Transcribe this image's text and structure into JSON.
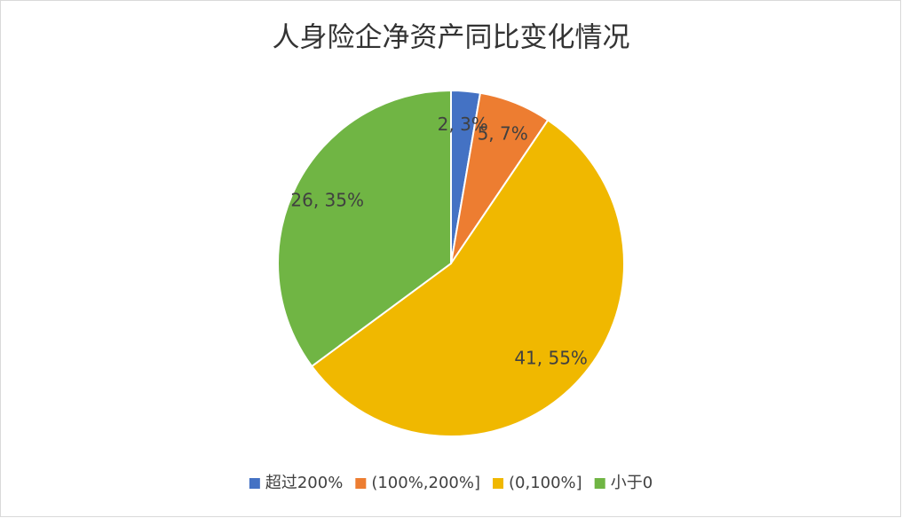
{
  "chart_data": {
    "type": "pie",
    "title": "人身险企净资产同比变化情况",
    "categories": [
      "超过200%",
      "(100%,200%]",
      "(0,100%]",
      "小于0"
    ],
    "values": [
      2,
      5,
      41,
      26
    ],
    "value_labels": [
      "2, 3%",
      "5, 7%",
      "41, 55%",
      "26, 35%"
    ],
    "colors": [
      "#4472c4",
      "#ed7d31",
      "#f0b800",
      "#70b544"
    ],
    "legend": "bottom"
  }
}
